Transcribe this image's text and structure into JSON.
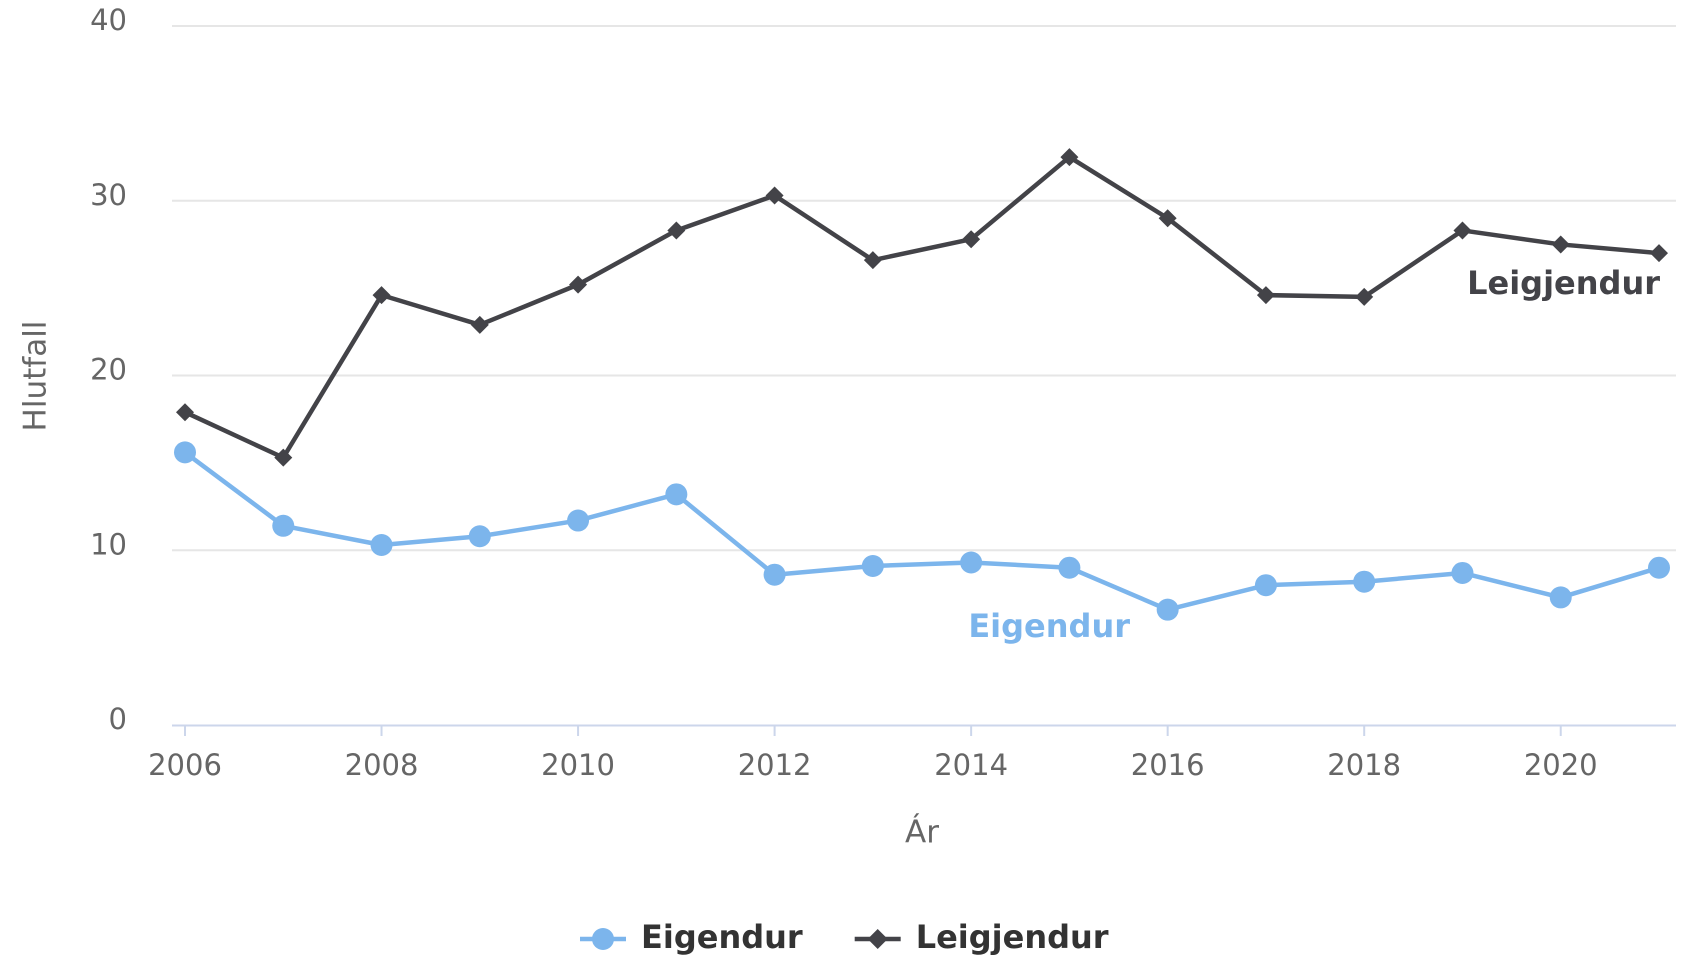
{
  "chart_data": {
    "type": "line",
    "x": [
      2006,
      2007,
      2008,
      2009,
      2010,
      2011,
      2012,
      2013,
      2014,
      2015,
      2016,
      2017,
      2018,
      2019,
      2020,
      2021
    ],
    "series": [
      {
        "name": "Eigendur",
        "color": "#7cb5ec",
        "marker": "circle",
        "values": [
          15.6,
          11.4,
          10.3,
          10.8,
          11.7,
          13.2,
          8.6,
          9.1,
          9.3,
          9.0,
          6.6,
          8.0,
          8.2,
          8.7,
          7.3,
          9.0
        ]
      },
      {
        "name": "Leigjendur",
        "color": "#434348",
        "marker": "diamond",
        "values": [
          17.9,
          15.3,
          24.6,
          22.9,
          25.2,
          28.3,
          30.3,
          26.6,
          27.8,
          32.5,
          29.0,
          24.6,
          24.5,
          28.3,
          27.5,
          27.0
        ]
      }
    ],
    "xlabel": "Ár",
    "ylabel": "Hlutfall",
    "xlim": [
      2006,
      2021
    ],
    "xticks": [
      2006,
      2008,
      2010,
      2012,
      2014,
      2016,
      2018,
      2020
    ],
    "ylim": [
      0,
      40
    ],
    "yticks": [
      0,
      10,
      20,
      30,
      40
    ],
    "grid": true,
    "legend": "bottom"
  }
}
